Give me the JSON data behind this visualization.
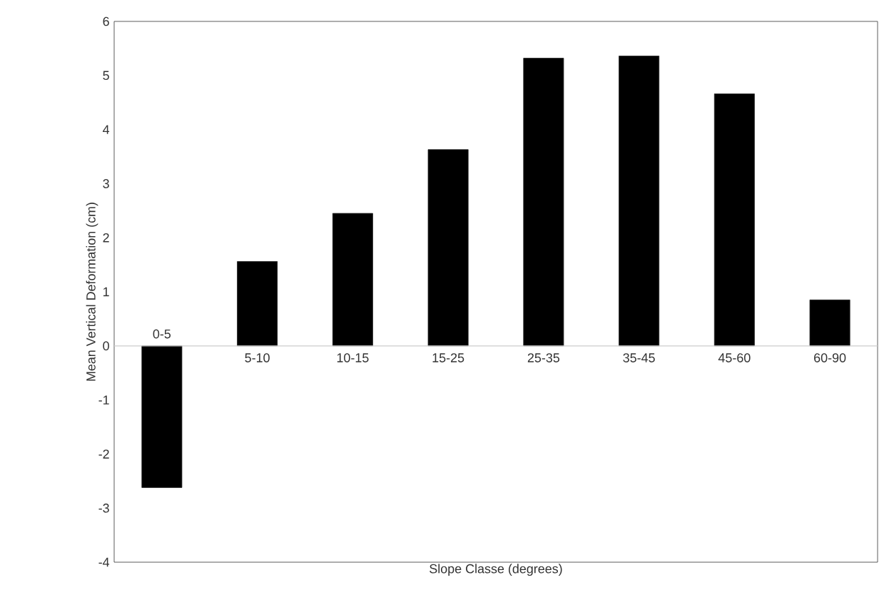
{
  "chart_data": {
    "type": "bar",
    "xlabel": "Slope Classe (degrees)",
    "ylabel": "Mean Vertical Deformation (cm)",
    "categories": [
      "0-5",
      "5-10",
      "10-15",
      "15-25",
      "25-35",
      "35-45",
      "45-60",
      "60-90"
    ],
    "values": [
      -2.62,
      1.56,
      2.45,
      3.63,
      5.32,
      5.36,
      4.66,
      0.85
    ],
    "color": "#000000",
    "ylim": [
      -4,
      6
    ],
    "yticks": [
      -4,
      -3,
      -2,
      -1,
      0,
      1,
      2,
      3,
      4,
      5,
      6
    ],
    "grid": false
  }
}
